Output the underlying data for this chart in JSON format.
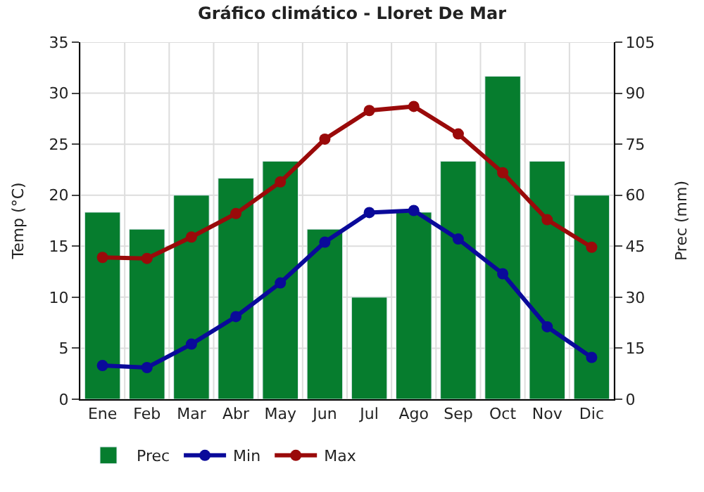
{
  "chart_data": {
    "type": "bar",
    "title": "Gráfico climático - Lloret De Mar",
    "xlabel": null,
    "ylabel": "Temp (°C)",
    "y2label": "Prec (mm)",
    "categories": [
      "Ene",
      "Feb",
      "Mar",
      "Abr",
      "May",
      "Jun",
      "Jul",
      "Ago",
      "Sep",
      "Oct",
      "Nov",
      "Dic"
    ],
    "series": [
      {
        "name": "Prec",
        "axis": "y2",
        "color": "#067d2e",
        "values": [
          55,
          50,
          60,
          65,
          70,
          50,
          30,
          55,
          70,
          95,
          70,
          60
        ]
      },
      {
        "name": "Min",
        "type": "line",
        "color": "#0a0a9a",
        "values": [
          3.3,
          3.1,
          5.4,
          8.1,
          11.4,
          15.4,
          18.3,
          18.5,
          15.7,
          12.3,
          7.1,
          4.1
        ]
      },
      {
        "name": "Max",
        "type": "line",
        "color": "#9a0a0a",
        "values": [
          13.9,
          13.8,
          15.9,
          18.2,
          21.3,
          25.5,
          28.3,
          28.7,
          26.0,
          22.2,
          17.6,
          14.9
        ]
      }
    ],
    "ylim": [
      0,
      35
    ],
    "yticks": [
      0,
      5,
      10,
      15,
      20,
      25,
      30,
      35
    ],
    "y2lim": [
      0,
      105
    ],
    "y2ticks": [
      0,
      15,
      30,
      45,
      60,
      75,
      90,
      105
    ],
    "grid": true,
    "legend": "bottom left",
    "marker": "circle",
    "line_style": "solid"
  }
}
